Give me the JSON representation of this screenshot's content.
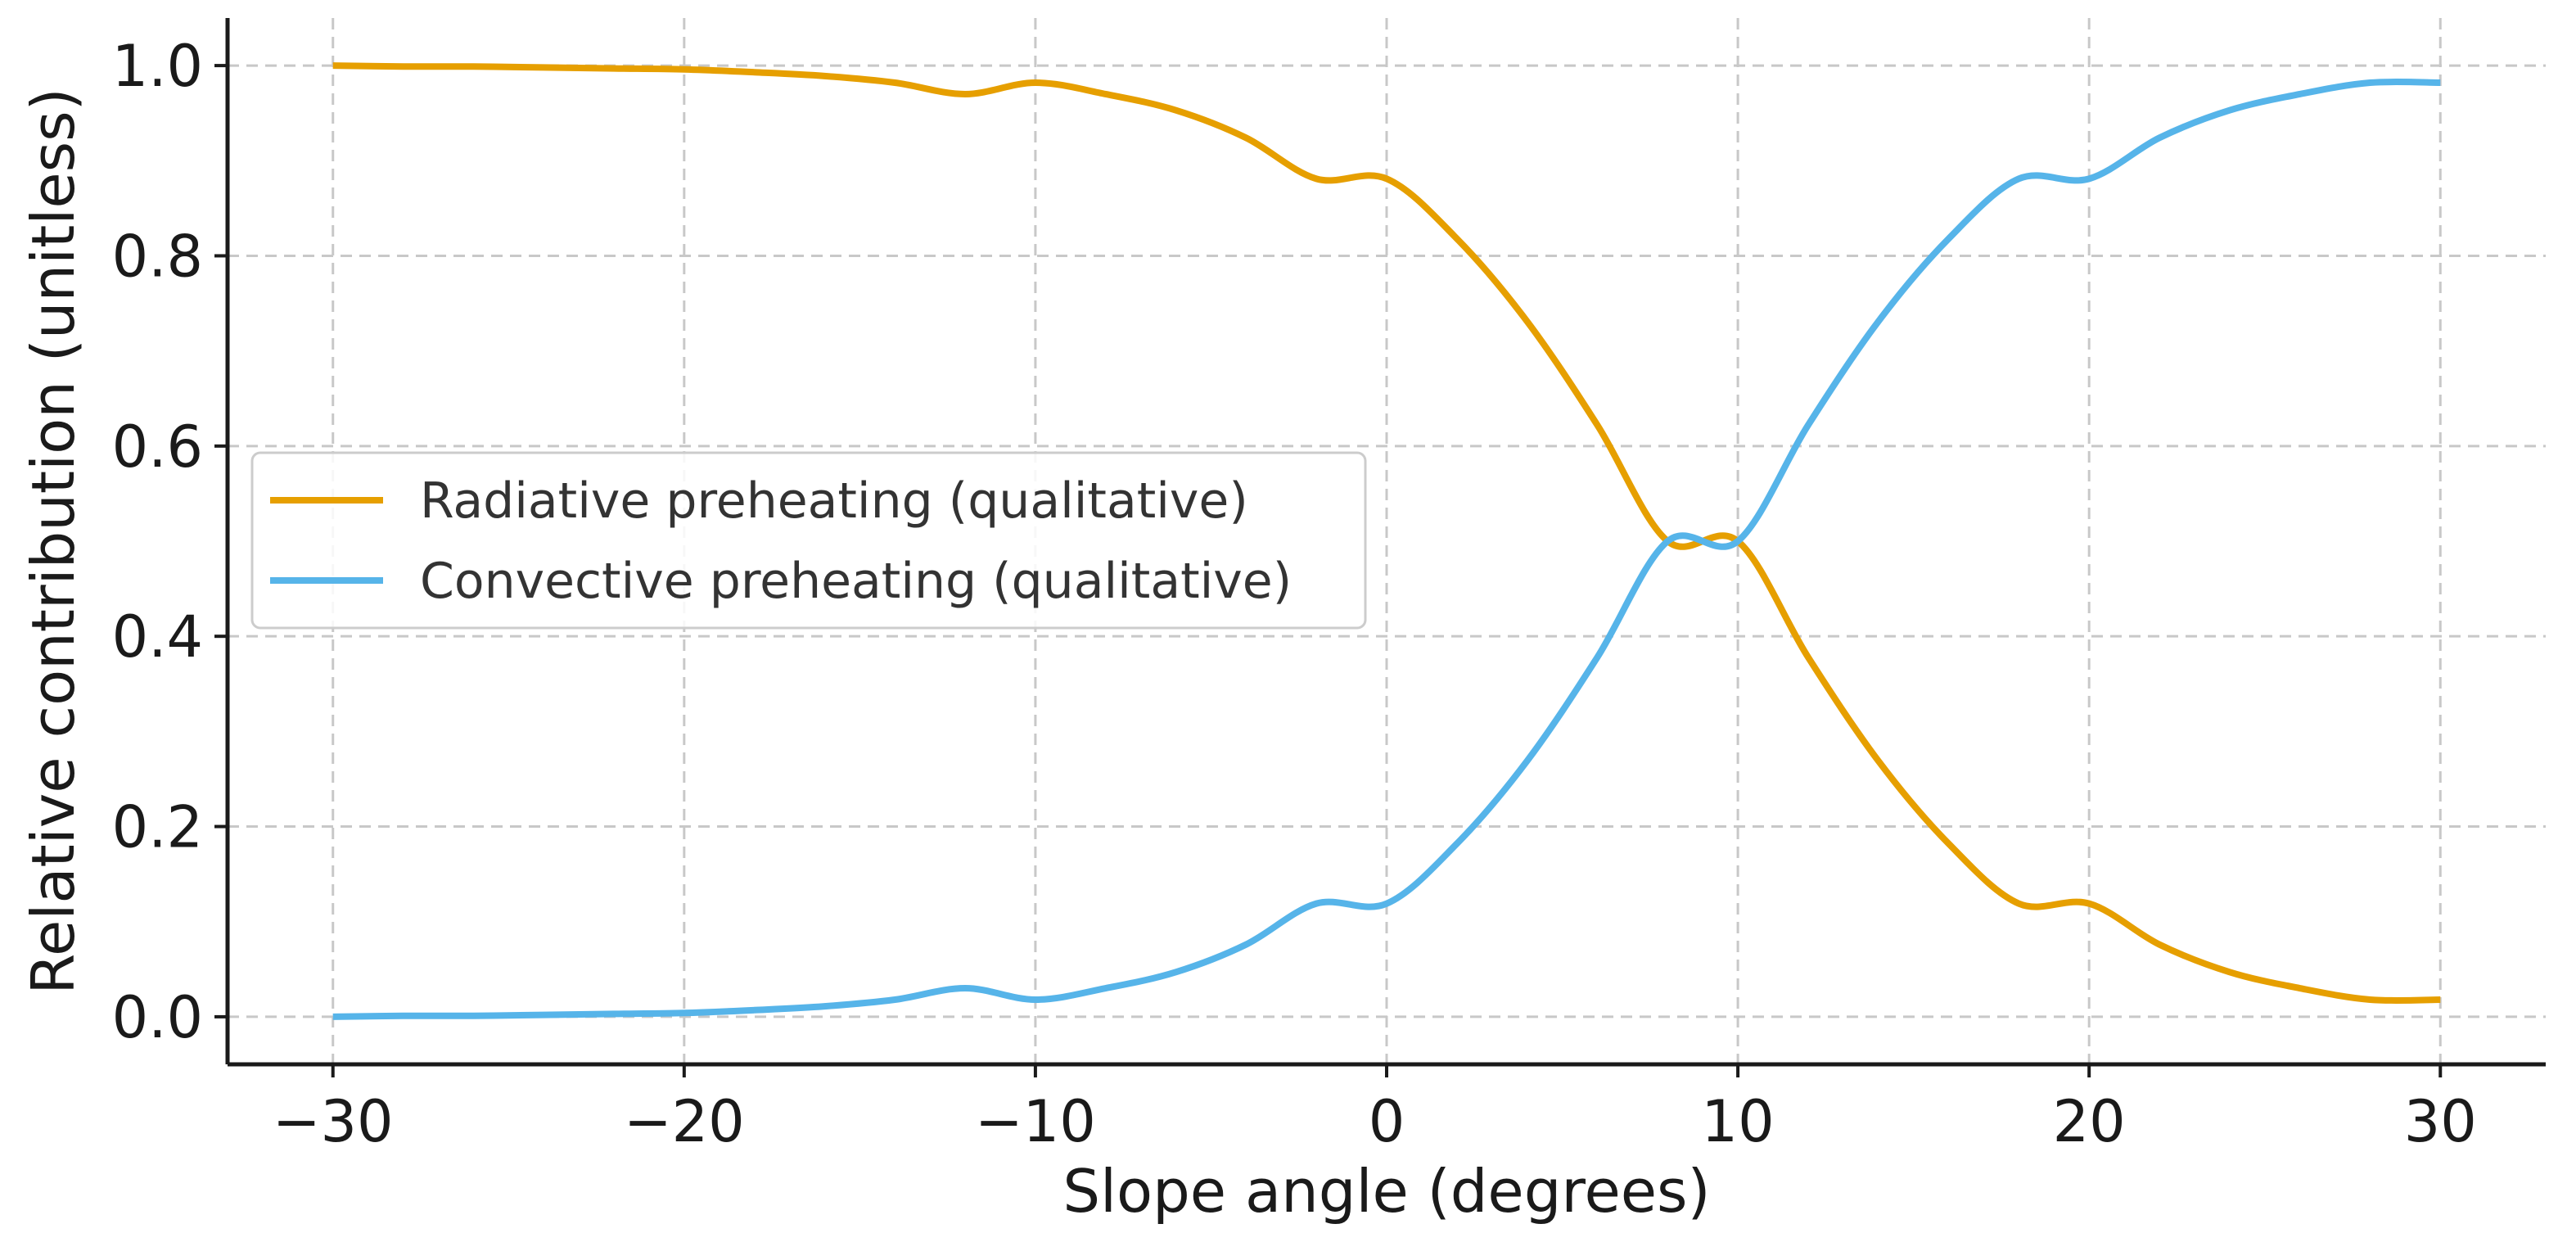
{
  "chart_data": {
    "type": "line",
    "title": "",
    "xlabel": "Slope angle (degrees)",
    "ylabel": "Relative contribution (unitless)",
    "xlim": [
      -33,
      33
    ],
    "ylim": [
      -0.05,
      1.05
    ],
    "x_ticks": [
      -30,
      -20,
      -10,
      0,
      10,
      20,
      30
    ],
    "x_tick_labels": [
      "−30",
      "−20",
      "−10",
      "0",
      "10",
      "20",
      "30"
    ],
    "y_ticks": [
      0.0,
      0.2,
      0.4,
      0.6,
      0.8,
      1.0
    ],
    "y_tick_labels": [
      "0.0",
      "0.2",
      "0.4",
      "0.6",
      "0.8",
      "1.0"
    ],
    "grid": true,
    "legend_position": "center-left",
    "x": [
      -30,
      -28,
      -26,
      -24,
      -22,
      -20,
      -18,
      -16,
      -14,
      -12,
      -10,
      -8,
      -6,
      -4,
      -2,
      0,
      2,
      4,
      6,
      8,
      10,
      12,
      14,
      16,
      18,
      20,
      22,
      24,
      26,
      28,
      30
    ],
    "series": [
      {
        "name": "Radiative preheating (qualitative)",
        "color": "#E69F00",
        "values": [
          1.0,
          0.999,
          0.999,
          0.998,
          0.997,
          0.996,
          0.993,
          0.989,
          0.982,
          0.97,
          0.982,
          0.97,
          0.953,
          0.924,
          0.881,
          0.881,
          0.818,
          0.731,
          0.622,
          0.5,
          0.5,
          0.378,
          0.269,
          0.182,
          0.119,
          0.119,
          0.076,
          0.047,
          0.03,
          0.018,
          0.018
        ]
      },
      {
        "name": "Convective preheating (qualitative)",
        "color": "#56B4E9",
        "values": [
          0.0,
          0.001,
          0.001,
          0.002,
          0.003,
          0.004,
          0.007,
          0.011,
          0.018,
          0.03,
          0.018,
          0.03,
          0.047,
          0.076,
          0.119,
          0.119,
          0.182,
          0.269,
          0.378,
          0.5,
          0.5,
          0.622,
          0.731,
          0.818,
          0.881,
          0.881,
          0.924,
          0.953,
          0.97,
          0.982,
          0.982
        ]
      }
    ]
  }
}
